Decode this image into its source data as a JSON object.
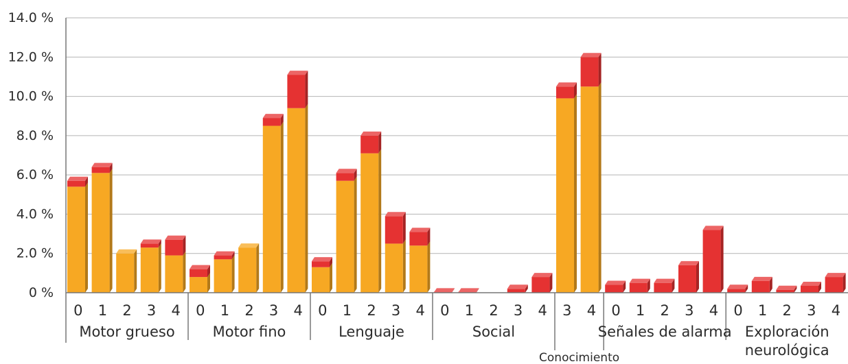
{
  "chart_data": {
    "type": "bar",
    "stacked": true,
    "style": "3d",
    "ylim": [
      0,
      14
    ],
    "y_ticks": [
      "0 %",
      "2.0 %",
      "4.0 %",
      "6.0 %",
      "8.0 %",
      "10.0 %",
      "12.0 %",
      "14.0 %"
    ],
    "grid": true,
    "colors": {
      "lower": "#F7A823",
      "upper": "#E53232"
    },
    "groups": [
      {
        "name": "Motor grueso",
        "categories": [
          "0",
          "1",
          "2",
          "3",
          "4"
        ]
      },
      {
        "name": "Motor fino",
        "categories": [
          "0",
          "1",
          "2",
          "3",
          "4"
        ]
      },
      {
        "name": "Lenguaje",
        "categories": [
          "0",
          "1",
          "2",
          "3",
          "4"
        ]
      },
      {
        "name": "Social",
        "categories": [
          "0",
          "1",
          "2",
          "3",
          "4"
        ]
      },
      {
        "name": "Conocimiento",
        "categories": [
          "3",
          "4"
        ]
      },
      {
        "name": "Señales de alarma",
        "categories": [
          "0",
          "1",
          "2",
          "3",
          "4"
        ]
      },
      {
        "name": "Exploración neurológica",
        "categories": [
          "0",
          "1",
          "2",
          "3",
          "4"
        ]
      }
    ],
    "series": [
      {
        "values": [
          5.4,
          6.1,
          2.0,
          2.3,
          1.9,
          0.8,
          1.7,
          2.3,
          8.5,
          9.4,
          1.3,
          5.7,
          7.1,
          2.5,
          2.4,
          0,
          0,
          0,
          0,
          0,
          9.9,
          10.5,
          0,
          0,
          0,
          0,
          0,
          0,
          0,
          0,
          0,
          0
        ]
      },
      {
        "values": [
          0.3,
          0.3,
          0,
          0.2,
          0.8,
          0.4,
          0.2,
          0,
          0.4,
          1.7,
          0.3,
          0.4,
          0.9,
          1.4,
          0.7,
          0.02,
          0.02,
          0,
          0.2,
          0.8,
          0.6,
          1.5,
          0.4,
          0.5,
          0.5,
          1.4,
          3.2,
          0.2,
          0.6,
          0.15,
          0.35,
          0.8
        ]
      }
    ]
  }
}
